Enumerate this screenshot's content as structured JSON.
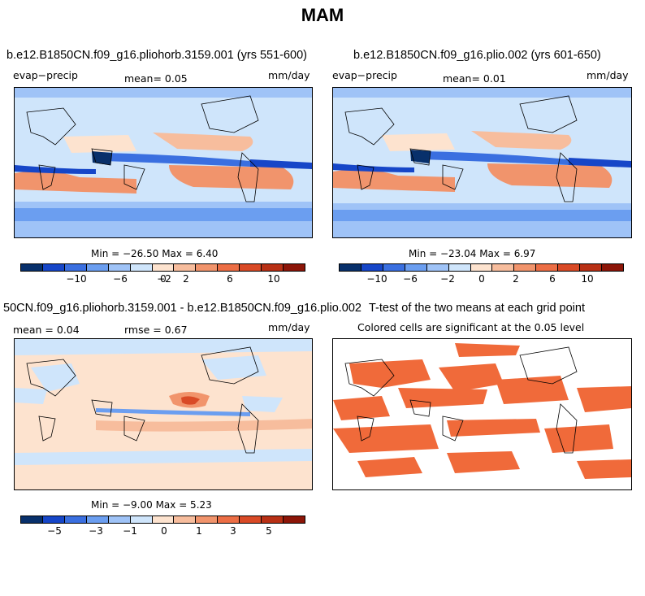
{
  "title": "MAM",
  "colors": {
    "diverging": [
      "#08306b",
      "#1646c8",
      "#3a6fe0",
      "#6b9ef0",
      "#9fc3f7",
      "#cfe5fb",
      "#fde3cf",
      "#f7bd9d",
      "#f1946c",
      "#ec6e45",
      "#d94a26",
      "#b83015",
      "#8c1508"
    ],
    "land_outline": "#000000",
    "significant": "#f06a3a"
  },
  "panels": {
    "p1": {
      "title": "b.e12.B1850CN.f09_g16.pliohorb.3159.001 (yrs 551-600)",
      "left_label": "evap−precip",
      "center_label": "mean=   0.05",
      "right_label": "mm/day",
      "minmax": "Min = −26.50 Max =   6.40",
      "ticks": [
        "−10",
        "−6",
        "−2",
        "0",
        "2",
        "6",
        "10"
      ]
    },
    "p2": {
      "title": "b.e12.B1850CN.f09_g16.plio.002 (yrs 601-650)",
      "left_label": "evap−precip",
      "center_label": "mean=   0.01",
      "right_label": "mm/day",
      "minmax": "Min = −23.04 Max =   6.97",
      "ticks": [
        "−10",
        "−6",
        "−2",
        "0",
        "2",
        "6",
        "10"
      ]
    },
    "p3": {
      "title": "50CN.f09_g16.pliohorb.3159.001 - b.e12.B1850CN.f09_g16.plio.002",
      "left_label": "mean =   0.04",
      "center_label": "rmse =   0.67",
      "right_label": "mm/day",
      "minmax": "Min =  −9.00 Max =   5.23",
      "ticks": [
        "−5",
        "−3",
        "−1",
        "0",
        "1",
        "3",
        "5"
      ]
    },
    "p4": {
      "title": "T-test of the two means at each grid point",
      "subtitle": "Colored cells are significant at the 0.05 level"
    }
  }
}
